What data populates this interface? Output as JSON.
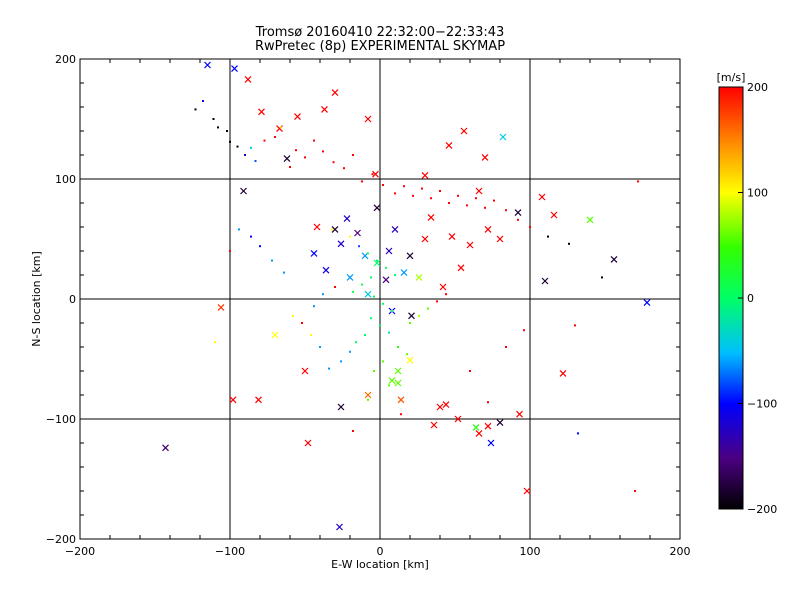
{
  "chart_data": {
    "type": "scatter",
    "title": "Tromsø 20160410 22:32:00−22:33:43",
    "subtitle": "RwPretec (8p) EXPERIMENTAL SKYMAP",
    "xlabel": "E-W location [km]",
    "ylabel": "N-S location [km]",
    "xlim": [
      -200,
      200
    ],
    "ylim": [
      -200,
      200
    ],
    "xticks": [
      -200,
      -100,
      0,
      100,
      200
    ],
    "yticks": [
      -200,
      -100,
      0,
      100,
      200
    ],
    "xtick_labels": [
      "−200",
      "−100",
      "0",
      "100",
      "200"
    ],
    "ytick_labels": [
      "−200",
      "−100",
      "0",
      "100",
      "200"
    ],
    "grid": true,
    "colorbar": {
      "label": "[m/s]",
      "range": [
        -200,
        200
      ],
      "ticks": [
        200,
        100,
        0,
        -100,
        -200
      ],
      "tick_labels": [
        "200",
        "100",
        "0",
        "−100",
        "−200"
      ],
      "colormap": "rainbow (black-purple-blue-cyan-green-yellow-orange-red)"
    },
    "marker_legend": "× = large markers, · = small markers (approximate sample of points)",
    "series": [
      {
        "values": [
          [
            -143,
            -124,
            -160,
            "x"
          ],
          [
            -106,
            -7,
            180,
            "x"
          ],
          [
            -98,
            -84,
            200,
            "x"
          ],
          [
            -81,
            -84,
            200,
            "x"
          ],
          [
            -48,
            -120,
            200,
            "x"
          ],
          [
            -26,
            -90,
            -180,
            "x"
          ],
          [
            -27,
            -190,
            -120,
            "x"
          ],
          [
            -8,
            -80,
            160,
            "x"
          ],
          [
            8,
            -68,
            60,
            "x"
          ],
          [
            12,
            -60,
            60,
            "x"
          ],
          [
            12,
            -70,
            60,
            "x"
          ],
          [
            14,
            -84,
            170,
            "x"
          ],
          [
            20,
            -51,
            100,
            "x"
          ],
          [
            21,
            -14,
            -180,
            "x"
          ],
          [
            36,
            -105,
            200,
            "x"
          ],
          [
            44,
            -88,
            200,
            "x"
          ],
          [
            52,
            -100,
            200,
            "x"
          ],
          [
            64,
            -107,
            40,
            "x"
          ],
          [
            66,
            -112,
            200,
            "x"
          ],
          [
            72,
            -106,
            200,
            "x"
          ],
          [
            74,
            -120,
            -100,
            "x"
          ],
          [
            80,
            -103,
            -180,
            "x"
          ],
          [
            93,
            -96,
            200,
            "x"
          ],
          [
            98,
            -160,
            200,
            "x"
          ],
          [
            110,
            15,
            -180,
            "x"
          ],
          [
            156,
            33,
            -180,
            "x"
          ],
          [
            178,
            -3,
            -100,
            "x"
          ],
          [
            -88,
            183,
            200,
            "x"
          ],
          [
            -115,
            195,
            -100,
            "x"
          ],
          [
            -97,
            192,
            -100,
            "x"
          ],
          [
            -79,
            156,
            200,
            "x"
          ],
          [
            -67,
            142,
            200,
            "x"
          ],
          [
            -62,
            117,
            -180,
            "x"
          ],
          [
            -55,
            152,
            200,
            "x"
          ],
          [
            -37,
            158,
            200,
            "x"
          ],
          [
            -30,
            172,
            200,
            "x"
          ],
          [
            -8,
            150,
            200,
            "x"
          ],
          [
            -3,
            104,
            200,
            "x"
          ],
          [
            30,
            103,
            200,
            "x"
          ],
          [
            46,
            128,
            200,
            "x"
          ],
          [
            56,
            140,
            200,
            "x"
          ],
          [
            70,
            118,
            200,
            "x"
          ],
          [
            66,
            90,
            200,
            "x"
          ],
          [
            82,
            135,
            -40,
            "x"
          ],
          [
            92,
            72,
            -180,
            "x"
          ],
          [
            116,
            70,
            200,
            "x"
          ],
          [
            140,
            66,
            60,
            "x"
          ],
          [
            108,
            85,
            200,
            "x"
          ],
          [
            -91,
            90,
            -180,
            "x"
          ],
          [
            -42,
            60,
            200,
            "x"
          ],
          [
            -30,
            58,
            -180,
            "x"
          ],
          [
            -22,
            67,
            -120,
            "x"
          ],
          [
            -15,
            55,
            -150,
            "x"
          ],
          [
            -2,
            76,
            -180,
            "x"
          ],
          [
            10,
            58,
            -130,
            "x"
          ],
          [
            34,
            68,
            200,
            "x"
          ],
          [
            48,
            52,
            200,
            "x"
          ],
          [
            60,
            45,
            200,
            "x"
          ],
          [
            72,
            58,
            200,
            "x"
          ],
          [
            80,
            50,
            200,
            "x"
          ],
          [
            -44,
            38,
            -100,
            "x"
          ],
          [
            -36,
            24,
            -110,
            "x"
          ],
          [
            -20,
            18,
            -60,
            "x"
          ],
          [
            4,
            16,
            -150,
            "x"
          ],
          [
            16,
            22,
            -60,
            "x"
          ],
          [
            26,
            18,
            80,
            "x"
          ],
          [
            42,
            10,
            200,
            "x"
          ],
          [
            54,
            26,
            200,
            "x"
          ],
          [
            -10,
            36,
            -60,
            "x"
          ],
          [
            -2,
            30,
            0,
            "x"
          ],
          [
            6,
            40,
            -130,
            "x"
          ],
          [
            20,
            36,
            -180,
            "x"
          ],
          [
            30,
            50,
            200,
            "x"
          ],
          [
            -26,
            46,
            -120,
            "x"
          ],
          [
            -8,
            4,
            -40,
            "x"
          ],
          [
            8,
            -10,
            -100,
            "x"
          ],
          [
            -70,
            -30,
            100,
            "x"
          ],
          [
            -50,
            -60,
            200,
            "x"
          ],
          [
            122,
            -62,
            200,
            "x"
          ],
          [
            40,
            -90,
            200,
            "x"
          ]
        ]
      },
      {
        "values": [
          [
            -118,
            165,
            -100,
            "."
          ],
          [
            -123,
            158,
            -200,
            "."
          ],
          [
            -111,
            150,
            -200,
            "."
          ],
          [
            -108,
            143,
            -200,
            "."
          ],
          [
            -102,
            140,
            -200,
            "."
          ],
          [
            -100,
            131,
            -200,
            "."
          ],
          [
            -95,
            127,
            -200,
            "."
          ],
          [
            -90,
            120,
            -120,
            "."
          ],
          [
            -86,
            126,
            -40,
            "."
          ],
          [
            -83,
            115,
            -80,
            "."
          ],
          [
            -77,
            132,
            200,
            "."
          ],
          [
            -70,
            135,
            200,
            "."
          ],
          [
            -66,
            143,
            120,
            "."
          ],
          [
            -60,
            110,
            200,
            "."
          ],
          [
            -56,
            124,
            200,
            "."
          ],
          [
            -50,
            118,
            200,
            "."
          ],
          [
            -44,
            132,
            200,
            "."
          ],
          [
            -38,
            123,
            200,
            "."
          ],
          [
            -31,
            114,
            200,
            "."
          ],
          [
            -24,
            109,
            200,
            "."
          ],
          [
            -18,
            120,
            200,
            "."
          ],
          [
            -12,
            98,
            200,
            "."
          ],
          [
            -5,
            104,
            200,
            "."
          ],
          [
            2,
            95,
            200,
            "."
          ],
          [
            10,
            88,
            200,
            "."
          ],
          [
            16,
            94,
            200,
            "."
          ],
          [
            22,
            86,
            200,
            "."
          ],
          [
            28,
            92,
            200,
            "."
          ],
          [
            34,
            84,
            200,
            "."
          ],
          [
            40,
            90,
            200,
            "."
          ],
          [
            46,
            80,
            200,
            "."
          ],
          [
            52,
            86,
            200,
            "."
          ],
          [
            58,
            78,
            200,
            "."
          ],
          [
            64,
            84,
            200,
            "."
          ],
          [
            70,
            76,
            200,
            "."
          ],
          [
            76,
            82,
            200,
            "."
          ],
          [
            84,
            74,
            200,
            "."
          ],
          [
            92,
            66,
            200,
            "."
          ],
          [
            100,
            60,
            200,
            "."
          ],
          [
            112,
            52,
            -200,
            "."
          ],
          [
            126,
            46,
            -200,
            "."
          ],
          [
            148,
            18,
            -200,
            "."
          ],
          [
            172,
            98,
            200,
            "."
          ],
          [
            -32,
            58,
            100,
            "."
          ],
          [
            -20,
            52,
            100,
            "."
          ],
          [
            -14,
            44,
            -80,
            "."
          ],
          [
            -8,
            38,
            20,
            "."
          ],
          [
            -2,
            32,
            0,
            "."
          ],
          [
            4,
            26,
            0,
            "."
          ],
          [
            10,
            20,
            0,
            "."
          ],
          [
            -6,
            18,
            0,
            "."
          ],
          [
            -12,
            12,
            20,
            "."
          ],
          [
            -18,
            6,
            20,
            "."
          ],
          [
            -4,
            2,
            0,
            "."
          ],
          [
            2,
            -4,
            0,
            "."
          ],
          [
            8,
            -10,
            0,
            "."
          ],
          [
            -6,
            -16,
            0,
            "."
          ],
          [
            0,
            -22,
            0,
            "."
          ],
          [
            6,
            -28,
            -20,
            "."
          ],
          [
            -10,
            -30,
            0,
            "."
          ],
          [
            -16,
            -36,
            0,
            "."
          ],
          [
            12,
            -40,
            40,
            "."
          ],
          [
            18,
            -46,
            60,
            "."
          ],
          [
            -20,
            -44,
            -60,
            "."
          ],
          [
            -26,
            -52,
            -60,
            "."
          ],
          [
            -34,
            -58,
            -60,
            "."
          ],
          [
            -40,
            -40,
            -60,
            "."
          ],
          [
            -46,
            -30,
            100,
            "."
          ],
          [
            -52,
            -20,
            200,
            "."
          ],
          [
            20,
            -20,
            60,
            "."
          ],
          [
            26,
            -14,
            80,
            "."
          ],
          [
            32,
            -8,
            60,
            "."
          ],
          [
            38,
            -2,
            200,
            "."
          ],
          [
            44,
            4,
            200,
            "."
          ],
          [
            -30,
            10,
            200,
            "."
          ],
          [
            -38,
            4,
            -60,
            "."
          ],
          [
            -44,
            -6,
            -60,
            "."
          ],
          [
            -58,
            -14,
            100,
            "."
          ],
          [
            -64,
            22,
            -60,
            "."
          ],
          [
            -72,
            32,
            -60,
            "."
          ],
          [
            -80,
            44,
            -100,
            "."
          ],
          [
            -86,
            52,
            -100,
            "."
          ],
          [
            -94,
            58,
            -60,
            "."
          ],
          [
            -100,
            40,
            200,
            "."
          ],
          [
            -110,
            -36,
            100,
            "."
          ],
          [
            60,
            -60,
            200,
            "."
          ],
          [
            72,
            -86,
            200,
            "."
          ],
          [
            84,
            -40,
            200,
            "."
          ],
          [
            96,
            -26,
            200,
            "."
          ],
          [
            130,
            -22,
            200,
            "."
          ],
          [
            132,
            -112,
            -100,
            "."
          ],
          [
            170,
            -160,
            200,
            "."
          ],
          [
            2,
            -52,
            60,
            "."
          ],
          [
            -4,
            -60,
            60,
            "."
          ],
          [
            6,
            -72,
            60,
            "."
          ],
          [
            -8,
            -84,
            60,
            "."
          ],
          [
            14,
            -96,
            200,
            "."
          ],
          [
            -18,
            -110,
            200,
            "."
          ]
        ]
      }
    ]
  }
}
